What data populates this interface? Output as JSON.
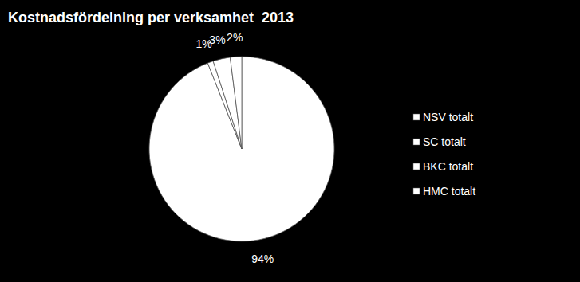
{
  "chart_data": {
    "type": "pie",
    "title": "Kostnadsfördelning per verksamhet  2013",
    "categories": [
      "NSV totalt",
      "SC totalt",
      "BKC totalt",
      "HMC totalt"
    ],
    "values": [
      94,
      1,
      3,
      2
    ],
    "value_labels": [
      "94%",
      "1%",
      "3%",
      "2%"
    ],
    "colors": [
      "#ffffff",
      "#ffffff",
      "#ffffff",
      "#ffffff"
    ],
    "data_labels": true,
    "legend": "right"
  }
}
